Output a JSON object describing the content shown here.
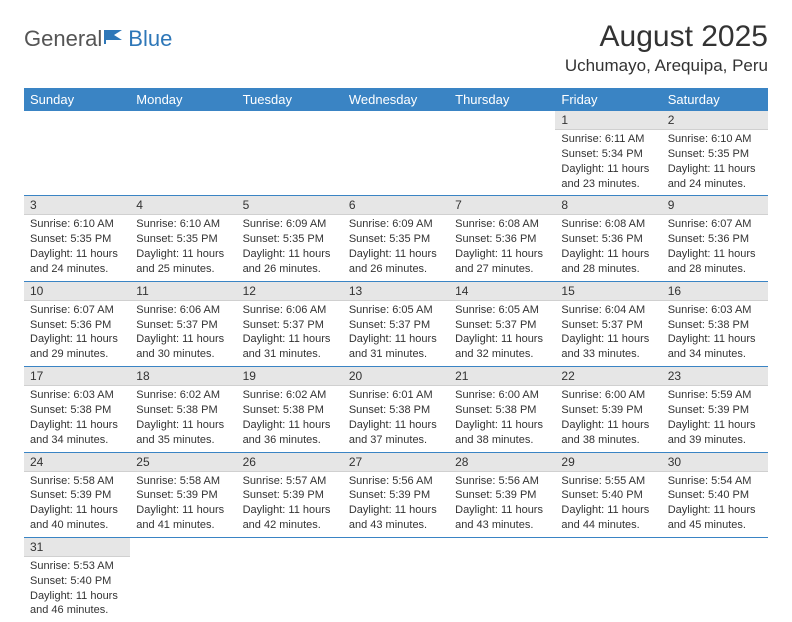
{
  "brand": {
    "part1": "General",
    "part2": "Blue"
  },
  "title": "August 2025",
  "location": "Uchumayo, Arequipa, Peru",
  "colors": {
    "header_bg": "#3a84c4",
    "header_text": "#ffffff",
    "daynum_bg": "#e6e6e6",
    "row_border": "#3a84c4",
    "brand_blue": "#2e77b8"
  },
  "weekdays": [
    "Sunday",
    "Monday",
    "Tuesday",
    "Wednesday",
    "Thursday",
    "Friday",
    "Saturday"
  ],
  "weeks": [
    [
      null,
      null,
      null,
      null,
      null,
      {
        "n": "1",
        "sunrise": "Sunrise: 6:11 AM",
        "sunset": "Sunset: 5:34 PM",
        "daylight": "Daylight: 11 hours and 23 minutes."
      },
      {
        "n": "2",
        "sunrise": "Sunrise: 6:10 AM",
        "sunset": "Sunset: 5:35 PM",
        "daylight": "Daylight: 11 hours and 24 minutes."
      }
    ],
    [
      {
        "n": "3",
        "sunrise": "Sunrise: 6:10 AM",
        "sunset": "Sunset: 5:35 PM",
        "daylight": "Daylight: 11 hours and 24 minutes."
      },
      {
        "n": "4",
        "sunrise": "Sunrise: 6:10 AM",
        "sunset": "Sunset: 5:35 PM",
        "daylight": "Daylight: 11 hours and 25 minutes."
      },
      {
        "n": "5",
        "sunrise": "Sunrise: 6:09 AM",
        "sunset": "Sunset: 5:35 PM",
        "daylight": "Daylight: 11 hours and 26 minutes."
      },
      {
        "n": "6",
        "sunrise": "Sunrise: 6:09 AM",
        "sunset": "Sunset: 5:35 PM",
        "daylight": "Daylight: 11 hours and 26 minutes."
      },
      {
        "n": "7",
        "sunrise": "Sunrise: 6:08 AM",
        "sunset": "Sunset: 5:36 PM",
        "daylight": "Daylight: 11 hours and 27 minutes."
      },
      {
        "n": "8",
        "sunrise": "Sunrise: 6:08 AM",
        "sunset": "Sunset: 5:36 PM",
        "daylight": "Daylight: 11 hours and 28 minutes."
      },
      {
        "n": "9",
        "sunrise": "Sunrise: 6:07 AM",
        "sunset": "Sunset: 5:36 PM",
        "daylight": "Daylight: 11 hours and 28 minutes."
      }
    ],
    [
      {
        "n": "10",
        "sunrise": "Sunrise: 6:07 AM",
        "sunset": "Sunset: 5:36 PM",
        "daylight": "Daylight: 11 hours and 29 minutes."
      },
      {
        "n": "11",
        "sunrise": "Sunrise: 6:06 AM",
        "sunset": "Sunset: 5:37 PM",
        "daylight": "Daylight: 11 hours and 30 minutes."
      },
      {
        "n": "12",
        "sunrise": "Sunrise: 6:06 AM",
        "sunset": "Sunset: 5:37 PM",
        "daylight": "Daylight: 11 hours and 31 minutes."
      },
      {
        "n": "13",
        "sunrise": "Sunrise: 6:05 AM",
        "sunset": "Sunset: 5:37 PM",
        "daylight": "Daylight: 11 hours and 31 minutes."
      },
      {
        "n": "14",
        "sunrise": "Sunrise: 6:05 AM",
        "sunset": "Sunset: 5:37 PM",
        "daylight": "Daylight: 11 hours and 32 minutes."
      },
      {
        "n": "15",
        "sunrise": "Sunrise: 6:04 AM",
        "sunset": "Sunset: 5:37 PM",
        "daylight": "Daylight: 11 hours and 33 minutes."
      },
      {
        "n": "16",
        "sunrise": "Sunrise: 6:03 AM",
        "sunset": "Sunset: 5:38 PM",
        "daylight": "Daylight: 11 hours and 34 minutes."
      }
    ],
    [
      {
        "n": "17",
        "sunrise": "Sunrise: 6:03 AM",
        "sunset": "Sunset: 5:38 PM",
        "daylight": "Daylight: 11 hours and 34 minutes."
      },
      {
        "n": "18",
        "sunrise": "Sunrise: 6:02 AM",
        "sunset": "Sunset: 5:38 PM",
        "daylight": "Daylight: 11 hours and 35 minutes."
      },
      {
        "n": "19",
        "sunrise": "Sunrise: 6:02 AM",
        "sunset": "Sunset: 5:38 PM",
        "daylight": "Daylight: 11 hours and 36 minutes."
      },
      {
        "n": "20",
        "sunrise": "Sunrise: 6:01 AM",
        "sunset": "Sunset: 5:38 PM",
        "daylight": "Daylight: 11 hours and 37 minutes."
      },
      {
        "n": "21",
        "sunrise": "Sunrise: 6:00 AM",
        "sunset": "Sunset: 5:38 PM",
        "daylight": "Daylight: 11 hours and 38 minutes."
      },
      {
        "n": "22",
        "sunrise": "Sunrise: 6:00 AM",
        "sunset": "Sunset: 5:39 PM",
        "daylight": "Daylight: 11 hours and 38 minutes."
      },
      {
        "n": "23",
        "sunrise": "Sunrise: 5:59 AM",
        "sunset": "Sunset: 5:39 PM",
        "daylight": "Daylight: 11 hours and 39 minutes."
      }
    ],
    [
      {
        "n": "24",
        "sunrise": "Sunrise: 5:58 AM",
        "sunset": "Sunset: 5:39 PM",
        "daylight": "Daylight: 11 hours and 40 minutes."
      },
      {
        "n": "25",
        "sunrise": "Sunrise: 5:58 AM",
        "sunset": "Sunset: 5:39 PM",
        "daylight": "Daylight: 11 hours and 41 minutes."
      },
      {
        "n": "26",
        "sunrise": "Sunrise: 5:57 AM",
        "sunset": "Sunset: 5:39 PM",
        "daylight": "Daylight: 11 hours and 42 minutes."
      },
      {
        "n": "27",
        "sunrise": "Sunrise: 5:56 AM",
        "sunset": "Sunset: 5:39 PM",
        "daylight": "Daylight: 11 hours and 43 minutes."
      },
      {
        "n": "28",
        "sunrise": "Sunrise: 5:56 AM",
        "sunset": "Sunset: 5:39 PM",
        "daylight": "Daylight: 11 hours and 43 minutes."
      },
      {
        "n": "29",
        "sunrise": "Sunrise: 5:55 AM",
        "sunset": "Sunset: 5:40 PM",
        "daylight": "Daylight: 11 hours and 44 minutes."
      },
      {
        "n": "30",
        "sunrise": "Sunrise: 5:54 AM",
        "sunset": "Sunset: 5:40 PM",
        "daylight": "Daylight: 11 hours and 45 minutes."
      }
    ],
    [
      {
        "n": "31",
        "sunrise": "Sunrise: 5:53 AM",
        "sunset": "Sunset: 5:40 PM",
        "daylight": "Daylight: 11 hours and 46 minutes."
      },
      null,
      null,
      null,
      null,
      null,
      null
    ]
  ]
}
